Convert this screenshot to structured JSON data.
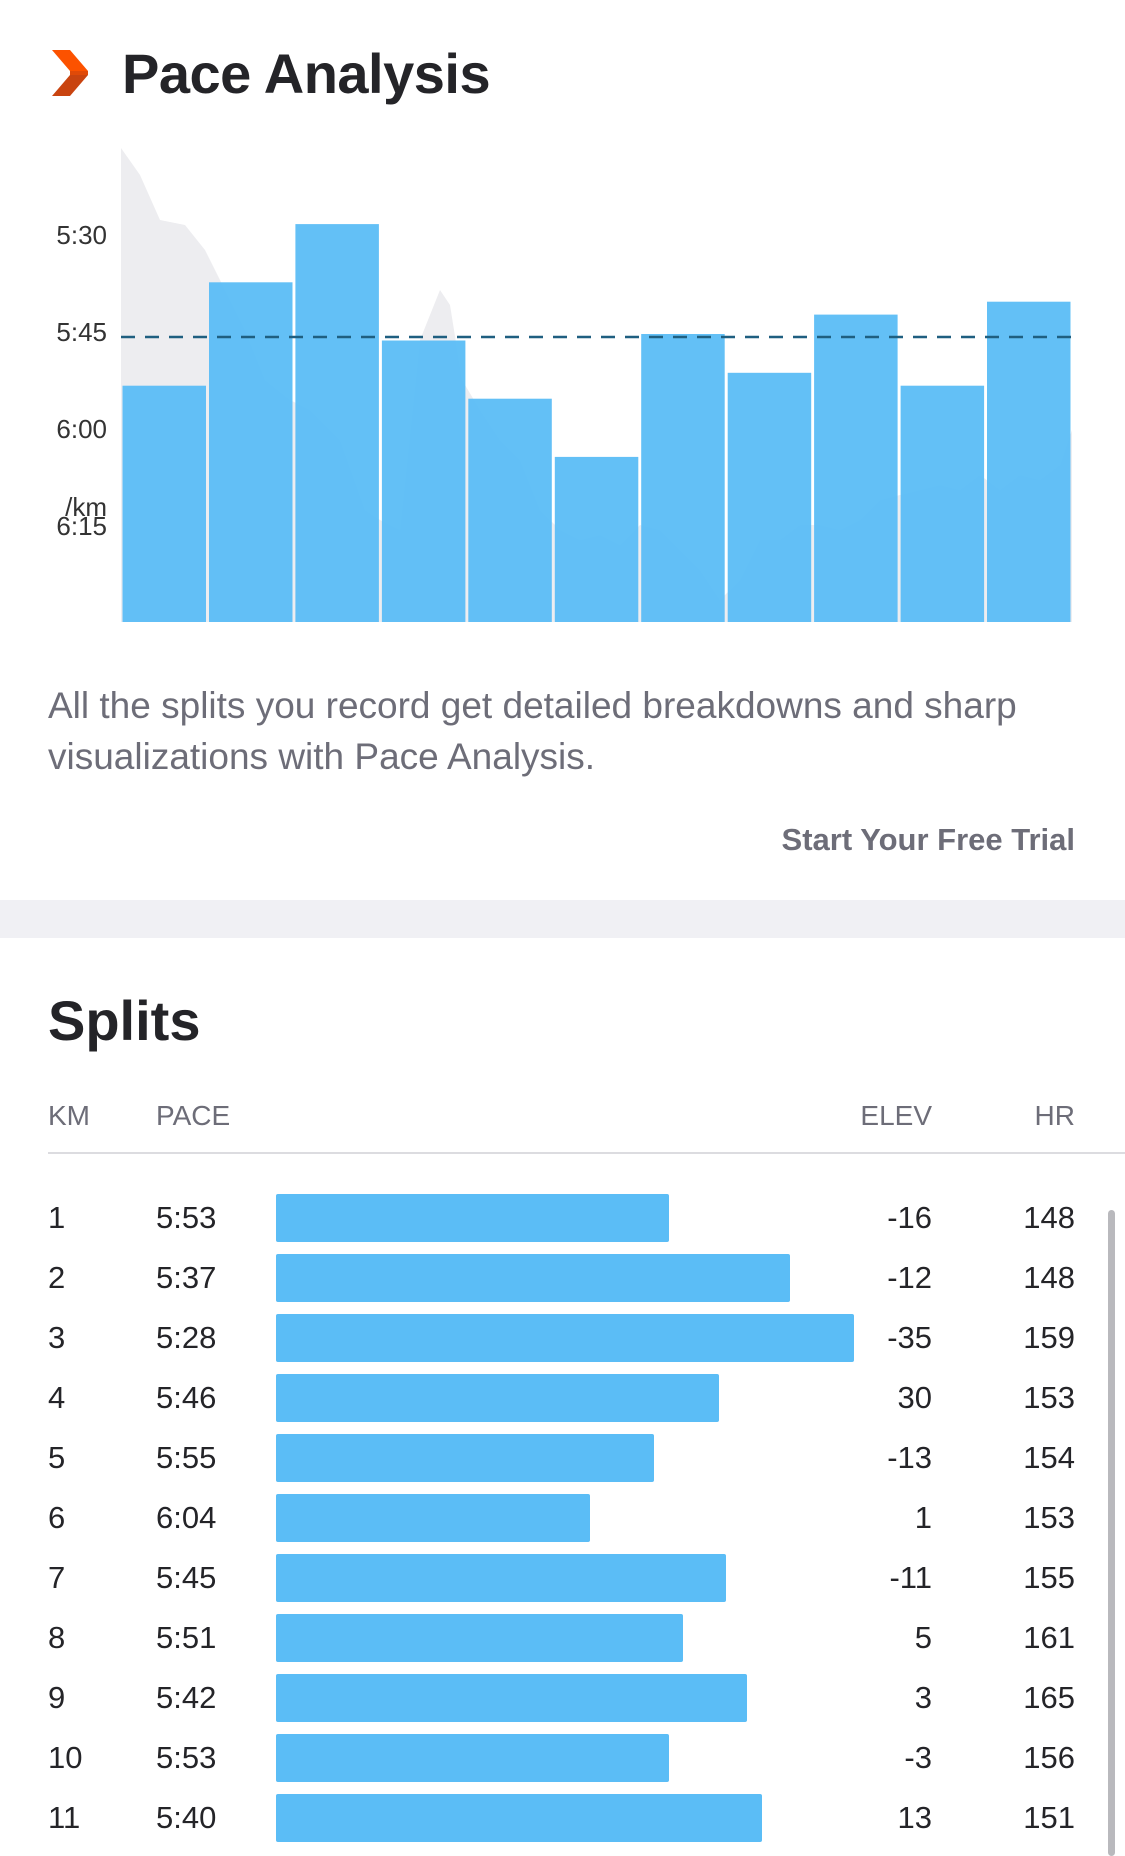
{
  "header": {
    "title": "Pace Analysis",
    "icon": "chevron-icon",
    "accent_color": "#fc5200"
  },
  "chart_data": {
    "type": "bar",
    "ylabel": "/km",
    "yticks": [
      "5:30",
      "5:45",
      "6:00",
      "6:15"
    ],
    "categories": [
      "1",
      "2",
      "3",
      "4",
      "5",
      "6",
      "7",
      "8",
      "9",
      "10",
      "11"
    ],
    "values": [
      "5:53",
      "5:37",
      "5:28",
      "5:46",
      "5:55",
      "6:04",
      "5:45",
      "5:51",
      "5:42",
      "5:53",
      "5:40"
    ],
    "values_seconds": [
      353,
      337,
      328,
      346,
      355,
      364,
      345,
      351,
      342,
      353,
      340
    ],
    "average_pace": "5:45",
    "bar_color": "#5bbdf6",
    "has_background_area": true,
    "reference_line": "dashed"
  },
  "description": "All the splits you record get detailed breakdowns and sharp visualizations with Pace Analysis.",
  "trial_link": "Start Your Free Trial",
  "splits": {
    "title": "Splits",
    "columns": {
      "km": "KM",
      "pace": "PACE",
      "elev": "ELEV",
      "hr": "HR"
    },
    "rows": [
      {
        "km": "1",
        "pace": "5:53",
        "elev": "-16",
        "hr": "148",
        "bar": 0.55
      },
      {
        "km": "2",
        "pace": "5:37",
        "elev": "-12",
        "hr": "148",
        "bar": 0.72
      },
      {
        "km": "3",
        "pace": "5:28",
        "elev": "-35",
        "hr": "159",
        "bar": 0.81
      },
      {
        "km": "4",
        "pace": "5:46",
        "elev": "30",
        "hr": "153",
        "bar": 0.62
      },
      {
        "km": "5",
        "pace": "5:55",
        "elev": "-13",
        "hr": "154",
        "bar": 0.53
      },
      {
        "km": "6",
        "pace": "6:04",
        "elev": "1",
        "hr": "153",
        "bar": 0.44
      },
      {
        "km": "7",
        "pace": "5:45",
        "elev": "-11",
        "hr": "155",
        "bar": 0.63
      },
      {
        "km": "8",
        "pace": "5:51",
        "elev": "5",
        "hr": "161",
        "bar": 0.57
      },
      {
        "km": "9",
        "pace": "5:42",
        "elev": "3",
        "hr": "165",
        "bar": 0.66
      },
      {
        "km": "10",
        "pace": "5:53",
        "elev": "-3",
        "hr": "156",
        "bar": 0.55
      },
      {
        "km": "11",
        "pace": "5:40",
        "elev": "13",
        "hr": "151",
        "bar": 0.68
      }
    ]
  }
}
